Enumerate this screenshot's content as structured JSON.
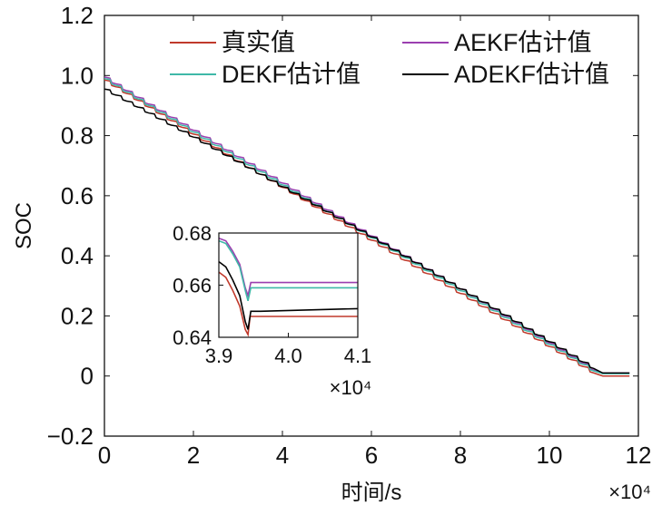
{
  "chart_data": [
    {
      "type": "line",
      "title": "",
      "xlabel": "时间/s",
      "ylabel": "SOC",
      "x_multiplier": "×10⁴",
      "xlim": [
        0,
        12
      ],
      "ylim": [
        -0.2,
        1.2
      ],
      "x_ticks": [
        "0",
        "2",
        "4",
        "6",
        "8",
        "10",
        "12"
      ],
      "y_ticks": [
        "−0.2",
        "0",
        "0.2",
        "0.4",
        "0.6",
        "0.8",
        "1.0",
        "1.2"
      ],
      "grid": false,
      "legend_position": "top",
      "series": [
        {
          "name": "真实值",
          "color": "#c0392b",
          "x": [
            0,
            1,
            2,
            3,
            4,
            5,
            6,
            7,
            8,
            9,
            10,
            11,
            11.2,
            11.8
          ],
          "y": [
            0.985,
            0.895,
            0.805,
            0.715,
            0.628,
            0.54,
            0.452,
            0.363,
            0.275,
            0.187,
            0.098,
            0.01,
            0.0,
            0.0
          ]
        },
        {
          "name": "AEKF估计值",
          "color": "#9b3fb0",
          "x": [
            0,
            1,
            2,
            3,
            4,
            5,
            6,
            7,
            8,
            9,
            10,
            11,
            11.2,
            11.8
          ],
          "y": [
            0.995,
            0.905,
            0.818,
            0.73,
            0.642,
            0.553,
            0.466,
            0.378,
            0.29,
            0.2,
            0.11,
            0.02,
            0.01,
            0.01
          ]
        },
        {
          "name": "DEKF估计值",
          "color": "#3fb8a8",
          "x": [
            0,
            1,
            2,
            3,
            4,
            5,
            6,
            7,
            8,
            9,
            10,
            11,
            11.2,
            11.8
          ],
          "y": [
            0.99,
            0.9,
            0.812,
            0.724,
            0.636,
            0.548,
            0.46,
            0.372,
            0.284,
            0.195,
            0.105,
            0.017,
            0.008,
            0.008
          ]
        },
        {
          "name": "ADEKF估计值",
          "color": "#000000",
          "x": [
            0,
            1,
            2,
            3,
            4,
            5,
            6,
            7,
            8,
            9,
            10,
            11,
            11.2,
            11.8
          ],
          "y": [
            0.955,
            0.875,
            0.795,
            0.713,
            0.63,
            0.547,
            0.463,
            0.377,
            0.29,
            0.203,
            0.114,
            0.025,
            0.01,
            0.01
          ]
        }
      ]
    },
    {
      "type": "line",
      "title": "",
      "x_multiplier": "×10⁴",
      "xlim": [
        3.9,
        4.1
      ],
      "ylim": [
        0.64,
        0.68
      ],
      "x_ticks": [
        "3.9",
        "4.0",
        "4.1"
      ],
      "y_ticks": [
        "0.64",
        "0.66",
        "0.68"
      ],
      "grid": false,
      "series": [
        {
          "name": "真实值",
          "color": "#c0392b",
          "x": [
            3.9,
            3.91,
            3.92,
            3.93,
            3.938,
            3.942,
            3.945,
            3.96,
            4.1
          ],
          "y": [
            0.665,
            0.663,
            0.658,
            0.652,
            0.643,
            0.641,
            0.648,
            0.648,
            0.648
          ]
        },
        {
          "name": "AEKF估计值",
          "color": "#9b3fb0",
          "x": [
            3.9,
            3.91,
            3.92,
            3.93,
            3.938,
            3.942,
            3.946,
            3.96,
            4.1
          ],
          "y": [
            0.678,
            0.677,
            0.673,
            0.668,
            0.659,
            0.656,
            0.661,
            0.661,
            0.661
          ]
        },
        {
          "name": "DEKF估计值",
          "color": "#3fb8a8",
          "x": [
            3.9,
            3.91,
            3.92,
            3.93,
            3.938,
            3.942,
            3.946,
            3.96,
            4.1
          ],
          "y": [
            0.677,
            0.676,
            0.672,
            0.667,
            0.658,
            0.654,
            0.659,
            0.659,
            0.659
          ]
        },
        {
          "name": "ADEKF估计值",
          "color": "#000000",
          "x": [
            3.9,
            3.91,
            3.92,
            3.93,
            3.938,
            3.942,
            3.946,
            3.96,
            4.1
          ],
          "y": [
            0.669,
            0.667,
            0.662,
            0.656,
            0.646,
            0.643,
            0.65,
            0.65,
            0.651
          ]
        }
      ]
    }
  ]
}
